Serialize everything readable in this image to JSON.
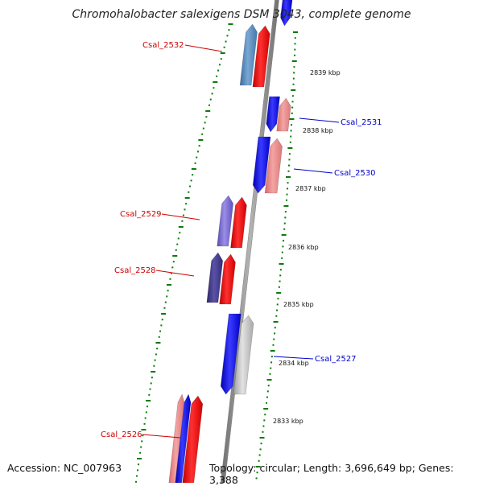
{
  "title": "Chromohalobacter salexigens DSM 3043, complete genome",
  "accession": "Accession: NC_007963",
  "summary": "Topology: circular; Length: 3,696,649 bp; Genes: 3,388",
  "colors": {
    "label_forward": "#cc0000",
    "label_reverse": "#0000cc",
    "gc_dots": "#0a7a0a",
    "backbone": "#808080"
  },
  "scale_ticks": [
    {
      "label": "2839 kbp"
    },
    {
      "label": "2838 kbp"
    },
    {
      "label": "2837 kbp"
    },
    {
      "label": "2836 kbp"
    },
    {
      "label": "2835 kbp"
    },
    {
      "label": "2834 kbp"
    },
    {
      "label": "2833 kbp"
    }
  ],
  "genes": [
    {
      "label": "Csal_2532",
      "strand": "forward"
    },
    {
      "label": "Csal_2531",
      "strand": "reverse"
    },
    {
      "label": "Csal_2530",
      "strand": "reverse"
    },
    {
      "label": "Csal_2529",
      "strand": "forward"
    },
    {
      "label": "Csal_2528",
      "strand": "forward"
    },
    {
      "label": "Csal_2527",
      "strand": "reverse"
    },
    {
      "label": "Csal_2526",
      "strand": "forward"
    }
  ]
}
